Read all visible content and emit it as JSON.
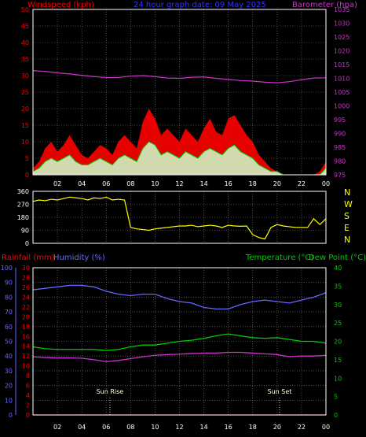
{
  "panel_top": {
    "left_label": "Windspeed (kph)",
    "center_label": "24 hour graph date: 09 May 2025",
    "right_label": "Barometer (hpa)"
  },
  "panel_bottom": {
    "left_label_rain": "Rainfall (mm)",
    "left_label_hum": "Humidity (%)",
    "right_label_temp": "Temperature (°C)",
    "right_label_dew": "Dew Point (°C)",
    "sunrise_label": "Sun Rise",
    "sunset_label": "Sun Set"
  },
  "colors": {
    "windspeed": "#ff0000",
    "gust_fill": "#ff0000",
    "avg_wind": "#00cc00",
    "avg_wind_light": "#ccffcc",
    "barometer": "#cc33cc",
    "direction": "#ffff00",
    "rainfall": "#ff0000",
    "humidity": "#6666ff",
    "temperature": "#00cc00",
    "dewpoint": "#cc33cc",
    "grid": "#808080"
  },
  "chart_data": [
    {
      "type": "area",
      "name": "wind-barometer",
      "x_ticks": [
        "02",
        "04",
        "06",
        "08",
        "10",
        "12",
        "14",
        "16",
        "18",
        "20",
        "22",
        "00"
      ],
      "y_left_ticks": [
        0,
        5,
        10,
        15,
        20,
        25,
        30,
        35,
        40,
        45,
        50
      ],
      "y_right_ticks": [
        975,
        980,
        985,
        990,
        995,
        1000,
        1005,
        1010,
        1015,
        1020,
        1025,
        1030,
        1035
      ],
      "ylim_left": [
        0,
        50
      ],
      "ylim_right": [
        975,
        1035
      ],
      "barometer_x": [
        0,
        1,
        2,
        3,
        4,
        5,
        6,
        7,
        8,
        9,
        10,
        11,
        12,
        13,
        14,
        15,
        16,
        17,
        18,
        19,
        20,
        21,
        22,
        23,
        24
      ],
      "barometer": [
        1012.8,
        1012.5,
        1012.0,
        1011.6,
        1011.1,
        1010.6,
        1010.3,
        1010.3,
        1010.8,
        1011.0,
        1010.6,
        1010.1,
        1010.0,
        1010.4,
        1010.5,
        1010.0,
        1009.6,
        1009.2,
        1009.0,
        1008.6,
        1008.4,
        1008.8,
        1009.5,
        1010.1,
        1010.2
      ],
      "gust_x": [
        0,
        0.5,
        1,
        1.5,
        2,
        2.5,
        3,
        3.5,
        4,
        4.5,
        5,
        5.5,
        6,
        6.5,
        7,
        7.5,
        8,
        8.5,
        9,
        9.5,
        10,
        10.5,
        11,
        11.5,
        12,
        12.5,
        13,
        13.5,
        14,
        14.5,
        15,
        15.5,
        16,
        16.5,
        17,
        17.5,
        18,
        18.5,
        19,
        19.5,
        20,
        20.5,
        21,
        21.5,
        22,
        22.5,
        23,
        23.5,
        24
      ],
      "gust": [
        2,
        4,
        8,
        10,
        7,
        9,
        12,
        9,
        6,
        5,
        7,
        9,
        8,
        6,
        10,
        12,
        10,
        8,
        16,
        20,
        17,
        12,
        14,
        12,
        10,
        14,
        12,
        10,
        14,
        17,
        13,
        12,
        17,
        18,
        15,
        12,
        10,
        6,
        4,
        2,
        1,
        0,
        0,
        0,
        0,
        0,
        0,
        1,
        4
      ],
      "avg": [
        1,
        2,
        4,
        5,
        4,
        5,
        6,
        4,
        3,
        3,
        4,
        5,
        4,
        3,
        5,
        6,
        5,
        4,
        8,
        10,
        9,
        6,
        7,
        6,
        5,
        7,
        6,
        5,
        7,
        8,
        7,
        6,
        8,
        9,
        7,
        6,
        5,
        3,
        2,
        1,
        1,
        0,
        0,
        0,
        0,
        0,
        0,
        0,
        2
      ]
    },
    {
      "type": "line",
      "name": "wind-direction",
      "y_ticks": [
        0,
        90,
        180,
        270,
        360
      ],
      "ylim": [
        0,
        360
      ],
      "compass": [
        "N",
        "W",
        "S",
        "E",
        "N"
      ],
      "x": [
        0,
        0.5,
        1,
        1.5,
        2,
        2.5,
        3,
        3.5,
        4,
        4.5,
        5,
        5.5,
        6,
        6.5,
        7,
        7.5,
        8,
        8.5,
        9,
        9.5,
        10,
        10.5,
        11,
        11.5,
        12,
        12.5,
        13,
        13.5,
        14,
        14.5,
        15,
        15.5,
        16,
        16.5,
        17,
        17.5,
        18,
        18.5,
        19,
        19.5,
        20,
        20.5,
        21,
        21.5,
        22,
        22.5,
        23,
        23.5,
        24
      ],
      "values": [
        290,
        300,
        295,
        305,
        300,
        310,
        320,
        315,
        310,
        300,
        315,
        310,
        320,
        300,
        305,
        300,
        110,
        100,
        95,
        90,
        100,
        105,
        110,
        115,
        120,
        120,
        125,
        115,
        120,
        125,
        120,
        110,
        125,
        120,
        118,
        120,
        60,
        40,
        30,
        110,
        130,
        120,
        115,
        110,
        110,
        110,
        170,
        130,
        170
      ]
    },
    {
      "type": "line",
      "name": "temp-humidity-rain",
      "x_ticks": [
        "02",
        "04",
        "06",
        "08",
        "10",
        "12",
        "14",
        "16",
        "18",
        "20",
        "22",
        "00"
      ],
      "y_hum_ticks": [
        0,
        10,
        20,
        30,
        40,
        50,
        60,
        70,
        80,
        90,
        100
      ],
      "y_rain_ticks": [
        0,
        2,
        4,
        6,
        8,
        10,
        12,
        14,
        16,
        18,
        20,
        22,
        24,
        26,
        28,
        30
      ],
      "y_temp_ticks": [
        0,
        5,
        10,
        15,
        20,
        25,
        30,
        35,
        40
      ],
      "ylim_hum": [
        0,
        100
      ],
      "ylim_rain": [
        0,
        30
      ],
      "ylim_temp": [
        0,
        40
      ],
      "x": [
        0,
        1,
        2,
        3,
        4,
        5,
        6,
        7,
        8,
        9,
        10,
        11,
        12,
        13,
        14,
        15,
        16,
        17,
        18,
        19,
        20,
        21,
        22,
        23,
        24
      ],
      "humidity": [
        85,
        86,
        87,
        88,
        88,
        87,
        84,
        82,
        81,
        82,
        82,
        79,
        77,
        76,
        73,
        72,
        72,
        75,
        77,
        78,
        77,
        76,
        78,
        80,
        83
      ],
      "temperature": [
        18.5,
        18.0,
        17.8,
        17.8,
        17.8,
        17.8,
        17.5,
        17.8,
        18.5,
        19.0,
        19.0,
        19.5,
        20.0,
        20.3,
        20.8,
        21.5,
        22.0,
        21.5,
        21.0,
        20.8,
        21.0,
        20.5,
        20.0,
        20.0,
        19.5
      ],
      "dewpoint": [
        15.8,
        15.6,
        15.5,
        15.5,
        15.4,
        15.0,
        14.5,
        14.8,
        15.3,
        15.8,
        16.2,
        16.4,
        16.5,
        16.7,
        16.8,
        16.8,
        17.0,
        17.0,
        16.8,
        16.6,
        16.4,
        15.8,
        16.0,
        16.0,
        16.2
      ],
      "rainfall": [
        0,
        0,
        0,
        0,
        0,
        0,
        0,
        0,
        0,
        0,
        0,
        0,
        0,
        0,
        0,
        0,
        0,
        0,
        0,
        0,
        0,
        0,
        0,
        0,
        0
      ],
      "sunrise_hour": 6.3,
      "sunset_hour": 20.2
    }
  ]
}
